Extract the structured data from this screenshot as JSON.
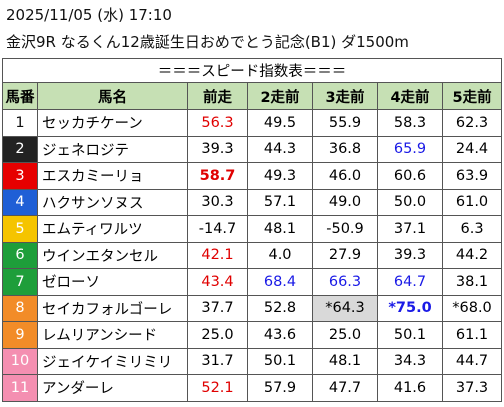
{
  "header": {
    "datetime": "2025/11/05 (水) 17:10",
    "race": "金沢9R なるくん12歳誕生日おめでとう記念(B1) ダ1500m"
  },
  "table": {
    "title": "＝＝＝スピード指数表＝＝＝",
    "columns": [
      "馬番",
      "馬名",
      "前走",
      "2走前",
      "3走前",
      "4走前",
      "5走前"
    ],
    "rows": [
      [
        "1",
        "セッカチケーン",
        "56.3",
        "49.5",
        "55.9",
        "58.3",
        "62.3"
      ],
      [
        "2",
        "ジェネロジテ",
        "39.3",
        "44.3",
        "36.8",
        "65.9",
        "24.4"
      ],
      [
        "3",
        "エスカミーリョ",
        "58.7",
        "49.3",
        "46.0",
        "60.6",
        "63.9"
      ],
      [
        "4",
        "ハクサンソヌス",
        "30.3",
        "57.1",
        "49.0",
        "50.0",
        "61.0"
      ],
      [
        "5",
        "エムティワルツ",
        "-14.7",
        "48.1",
        "-50.9",
        "37.1",
        "6.3"
      ],
      [
        "6",
        "ウインエタンセル",
        "42.1",
        "4.0",
        "27.9",
        "39.3",
        "44.2"
      ],
      [
        "7",
        "ゼローソ",
        "43.4",
        "68.4",
        "66.3",
        "64.7",
        "38.1"
      ],
      [
        "8",
        "セイカフォルゴーレ",
        "37.7",
        "52.8",
        "*64.3",
        "*75.0",
        "*68.0"
      ],
      [
        "9",
        "レムリアンシード",
        "25.0",
        "43.6",
        "25.0",
        "50.1",
        "61.1"
      ],
      [
        "10",
        "ジェイケイミリミリ",
        "31.7",
        "50.1",
        "48.1",
        "34.3",
        "44.7"
      ],
      [
        "11",
        "アンダーレ",
        "52.1",
        "57.9",
        "47.7",
        "41.6",
        "37.3"
      ]
    ]
  }
}
